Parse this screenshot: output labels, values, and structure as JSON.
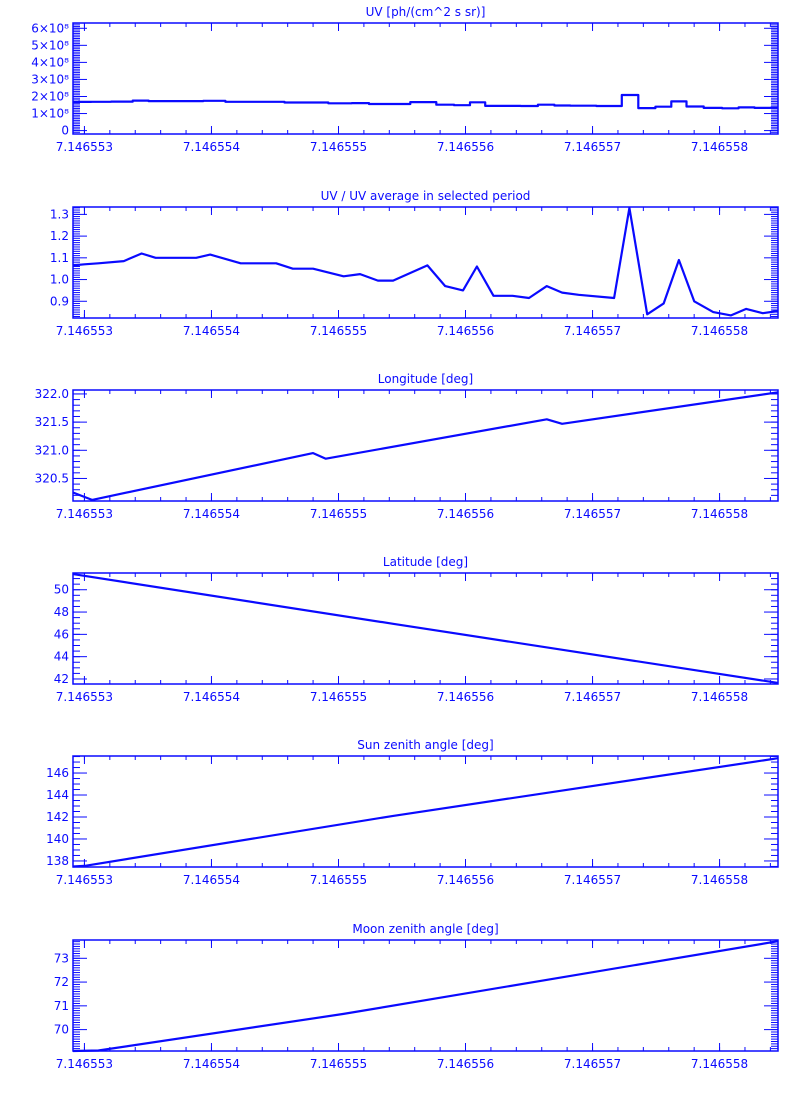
{
  "style": {
    "color": "#0a0aff",
    "background": "#ffffff"
  },
  "chart_data": [
    {
      "type": "line",
      "step": true,
      "title": "UV [ph/(cm^2 s sr)]",
      "xlim": [
        7.14655291,
        7.14655846
      ],
      "ylim": [
        -20000000,
        631000000
      ],
      "xticks": [
        7.146553,
        7.146554,
        7.146555,
        7.146556,
        7.146557,
        7.146558
      ],
      "xtick_labels": [
        "7.146553",
        "7.146554",
        "7.146555",
        "7.146556",
        "7.146557",
        "7.146558"
      ],
      "yticks": [
        0,
        100000000,
        200000000,
        300000000,
        400000000,
        500000000,
        600000000
      ],
      "ytick_labels": [
        "0",
        "1×10⁸",
        "2×10⁸",
        "3×10⁸",
        "4×10⁸",
        "5×10⁸",
        "6×10⁸"
      ],
      "yminor": 10000000,
      "x": [
        7.14655291,
        7.146553,
        7.14655311,
        7.14655331,
        7.14655345,
        7.14655356,
        7.14655388,
        7.14655399,
        7.14655423,
        7.14655451,
        7.14655464,
        7.1465548,
        7.14655504,
        7.14655517,
        7.14655531,
        7.14655543,
        7.1465557,
        7.14655584,
        7.14655598,
        7.14655609,
        7.14655622,
        7.14655637,
        7.1465565,
        7.14655664,
        7.14655676,
        7.14655689,
        7.14655717,
        7.14655729,
        7.14655743,
        7.14655756,
        7.14655768,
        7.1465578,
        7.14655795,
        7.14655809,
        7.14655821,
        7.14655834,
        7.14655846
      ],
      "y": [
        167000000,
        168000000,
        169000000,
        170000000,
        176000000,
        173000000,
        173000000,
        175000000,
        169000000,
        169000000,
        165000000,
        165000000,
        160000000,
        161000000,
        156000000,
        156000000,
        167000000,
        152000000,
        149000000,
        166000000,
        145000000,
        145000000,
        144000000,
        152000000,
        147000000,
        146000000,
        144000000,
        209000000,
        132000000,
        140000000,
        171000000,
        141000000,
        133000000,
        131000000,
        136000000,
        133000000,
        134000000
      ]
    },
    {
      "type": "line",
      "title": "UV / UV average in selected period",
      "xlim": [
        7.14655291,
        7.14655846
      ],
      "ylim": [
        0.823,
        1.334
      ],
      "xticks": [
        7.146553,
        7.146554,
        7.146555,
        7.146556,
        7.146557,
        7.146558
      ],
      "xtick_labels": [
        "7.146553",
        "7.146554",
        "7.146555",
        "7.146556",
        "7.146557",
        "7.146558"
      ],
      "yticks": [
        0.9,
        1.0,
        1.1,
        1.2,
        1.3
      ],
      "ytick_labels": [
        "0.9",
        "1.0",
        "1.1",
        "1.2",
        "1.3"
      ],
      "yminor": 0.01,
      "x": [
        7.14655291,
        7.146553,
        7.14655311,
        7.14655331,
        7.14655345,
        7.14655356,
        7.14655388,
        7.14655399,
        7.14655423,
        7.14655451,
        7.14655464,
        7.1465548,
        7.14655504,
        7.14655517,
        7.14655531,
        7.14655543,
        7.1465557,
        7.14655584,
        7.14655598,
        7.14655609,
        7.14655622,
        7.14655637,
        7.1465565,
        7.14655664,
        7.14655676,
        7.14655689,
        7.14655717,
        7.14655729,
        7.14655743,
        7.14655756,
        7.14655768,
        7.1465578,
        7.14655795,
        7.14655809,
        7.14655821,
        7.14655834,
        7.14655846
      ],
      "y": [
        1.065,
        1.07,
        1.075,
        1.085,
        1.12,
        1.1,
        1.1,
        1.115,
        1.075,
        1.075,
        1.05,
        1.05,
        1.015,
        1.025,
        0.995,
        0.995,
        1.065,
        0.97,
        0.95,
        1.06,
        0.925,
        0.925,
        0.915,
        0.97,
        0.94,
        0.93,
        0.915,
        1.33,
        0.84,
        0.89,
        1.09,
        0.9,
        0.85,
        0.835,
        0.865,
        0.845,
        0.855
      ]
    },
    {
      "type": "line",
      "title": "Longitude [deg]",
      "xlim": [
        7.14655291,
        7.14655846
      ],
      "ylim": [
        320.1,
        322.07
      ],
      "xticks": [
        7.146553,
        7.146554,
        7.146555,
        7.146556,
        7.146557,
        7.146558
      ],
      "xtick_labels": [
        "7.146553",
        "7.146554",
        "7.146555",
        "7.146556",
        "7.146557",
        "7.146558"
      ],
      "yticks": [
        320.5,
        321.0,
        321.5,
        322.0
      ],
      "ytick_labels": [
        "320.5",
        "321.0",
        "321.5",
        "322.0"
      ],
      "yminor": 0.1,
      "x": [
        7.14655291,
        7.14655306,
        7.1465548,
        7.1465549,
        7.14655664,
        7.14655676,
        7.14655846
      ],
      "y": [
        320.25,
        320.12,
        320.95,
        320.85,
        321.55,
        321.47,
        322.03
      ]
    },
    {
      "type": "line",
      "title": "Latitude [deg]",
      "xlim": [
        7.14655291,
        7.14655846
      ],
      "ylim": [
        41.55,
        51.5
      ],
      "xticks": [
        7.146553,
        7.146554,
        7.146555,
        7.146556,
        7.146557,
        7.146558
      ],
      "xtick_labels": [
        "7.146553",
        "7.146554",
        "7.146555",
        "7.146556",
        "7.146557",
        "7.146558"
      ],
      "yticks": [
        42,
        44,
        46,
        48,
        50
      ],
      "ytick_labels": [
        "42",
        "44",
        "46",
        "48",
        "50"
      ],
      "yminor": 0.5,
      "x": [
        7.14655291,
        7.14655543,
        7.14655846
      ],
      "y": [
        51.4,
        46.95,
        41.65
      ]
    },
    {
      "type": "line",
      "title": "Sun zenith angle [deg]",
      "xlim": [
        7.14655291,
        7.14655846
      ],
      "ylim": [
        137.45,
        147.55
      ],
      "xticks": [
        7.146553,
        7.146554,
        7.146555,
        7.146556,
        7.146557,
        7.146558
      ],
      "xtick_labels": [
        "7.146553",
        "7.146554",
        "7.146555",
        "7.146556",
        "7.146557",
        "7.146558"
      ],
      "yticks": [
        138,
        140,
        142,
        144,
        146
      ],
      "ytick_labels": [
        "138",
        "140",
        "142",
        "144",
        "146"
      ],
      "yminor": 0.5,
      "x": [
        7.14655291,
        7.146553,
        7.14655543,
        7.14655846
      ],
      "y": [
        137.5,
        137.55,
        142.1,
        147.35
      ]
    },
    {
      "type": "line",
      "title": "Moon zenith angle [deg]",
      "xlim": [
        7.14655291,
        7.14655846
      ],
      "ylim": [
        69.1,
        73.77
      ],
      "xticks": [
        7.146553,
        7.146554,
        7.146555,
        7.146556,
        7.146557,
        7.146558
      ],
      "xtick_labels": [
        "7.146553",
        "7.146554",
        "7.146555",
        "7.146556",
        "7.146557",
        "7.146558"
      ],
      "yticks": [
        70,
        71,
        72,
        73
      ],
      "ytick_labels": [
        "70",
        "71",
        "72",
        "73"
      ],
      "yminor": 0.1,
      "x": [
        7.14655291,
        7.14655311,
        7.14655504,
        7.14655676,
        7.14655846
      ],
      "y": [
        69.1,
        69.12,
        70.66,
        72.2,
        73.72
      ]
    }
  ]
}
